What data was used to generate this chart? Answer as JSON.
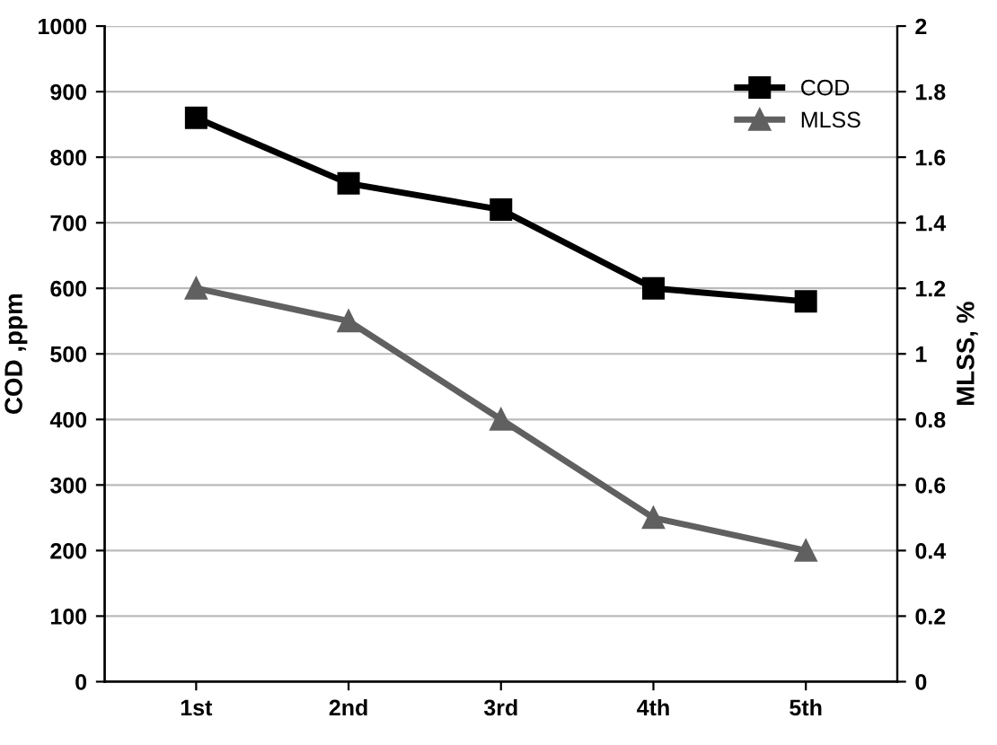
{
  "chart_data": {
    "type": "line",
    "categories": [
      "1st",
      "2nd",
      "3rd",
      "4th",
      "5th"
    ],
    "series": [
      {
        "name": "COD",
        "color": "#000000",
        "marker": "square",
        "values": [
          860,
          760,
          720,
          600,
          580
        ]
      },
      {
        "name": "MLSS",
        "color": "#606060",
        "marker": "triangle",
        "axis": "y2",
        "values": [
          1.2,
          1.1,
          0.8,
          0.5,
          0.4
        ]
      }
    ],
    "ylabel": "COD ,ppm",
    "y2label": "MLSS, %",
    "ylim": [
      0,
      1000
    ],
    "yticks": [
      0,
      100,
      200,
      300,
      400,
      500,
      600,
      700,
      800,
      900,
      1000
    ],
    "y2lim": [
      0,
      2
    ],
    "y2ticks": [
      0,
      {
        "value": 0.2,
        "label": "0.2"
      },
      {
        "value": 0.4,
        "label": "0.4"
      },
      {
        "value": 0.6,
        "label": "0.6"
      },
      {
        "value": 0.8,
        "label": "0.8"
      },
      1,
      {
        "value": 1.2,
        "label": "1.2"
      },
      {
        "value": 1.4,
        "label": "1.4"
      },
      {
        "value": 1.6,
        "label": "1.6"
      },
      {
        "value": 1.8,
        "label": "1.8"
      },
      2
    ],
    "grid": "y",
    "legend": "top right",
    "line_style": "solid"
  }
}
